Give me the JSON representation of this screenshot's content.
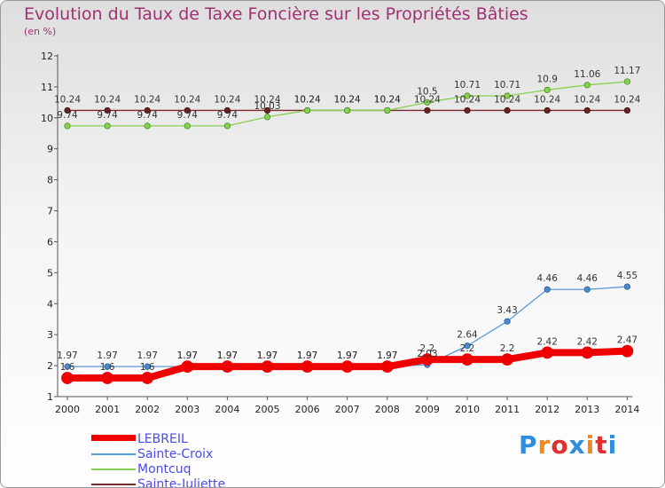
{
  "chart_data": {
    "type": "line",
    "title": "Evolution du Taux de Taxe Foncière sur les Propriétés Bâties",
    "ylabel": "(en %)",
    "xlabel": "",
    "ylim": [
      1,
      12
    ],
    "yticks": [
      1,
      2,
      3,
      4,
      5,
      6,
      7,
      8,
      9,
      10,
      11,
      12
    ],
    "x": [
      "2000",
      "2001",
      "2002",
      "2003",
      "2004",
      "2005",
      "2006",
      "2007",
      "2008",
      "2009",
      "2010",
      "2011",
      "2012",
      "2013",
      "2014"
    ],
    "series": [
      {
        "name": "LEBREIL",
        "color": "#ee0000",
        "values": [
          1.6,
          1.6,
          1.6,
          1.97,
          1.97,
          1.97,
          1.97,
          1.97,
          1.97,
          2.2,
          2.2,
          2.2,
          2.42,
          2.42,
          2.47
        ],
        "labels": [
          "1.6",
          "1.6",
          "1.6",
          "1.97",
          "1.97",
          "1.97",
          "1.97",
          "1.97",
          "1.97",
          "2.2",
          "2.2",
          "2.2",
          "2.42",
          "2.42",
          "2.47"
        ]
      },
      {
        "name": "Sainte-Croix",
        "color": "#5a9ad8",
        "values": [
          1.97,
          1.97,
          1.97,
          1.97,
          1.97,
          1.97,
          1.97,
          1.97,
          1.97,
          2.03,
          2.64,
          3.43,
          4.46,
          4.46,
          4.55
        ],
        "labels": [
          "1.97",
          "1.97",
          "1.97",
          "1.97",
          "1.97",
          "1.97",
          "1.97",
          "1.97",
          "1.97",
          "2.03",
          "2.64",
          "3.43",
          "4.46",
          "4.46",
          "4.55"
        ]
      },
      {
        "name": "Montcuq",
        "color": "#88d050",
        "values": [
          9.74,
          9.74,
          9.74,
          9.74,
          9.74,
          10.03,
          10.24,
          10.24,
          10.24,
          10.5,
          10.71,
          10.71,
          10.9,
          11.06,
          11.17
        ],
        "labels": [
          "9.74",
          "9.74",
          "9.74",
          "9.74",
          "9.74",
          "10.03",
          "10.24",
          "10.24",
          "10.24",
          "10.5",
          "10.71",
          "10.71",
          "10.9",
          "11.06",
          "11.17"
        ]
      },
      {
        "name": "Sainte-Juliette",
        "color": "#7a2a2a",
        "values": [
          10.24,
          10.24,
          10.24,
          10.24,
          10.24,
          10.24,
          10.24,
          10.24,
          10.24,
          10.24,
          10.24,
          10.24,
          10.24,
          10.24,
          10.24
        ],
        "labels": [
          "10.24",
          "10.24",
          "10.24",
          "10.24",
          "10.24",
          "10.24",
          "10.24",
          "10.24",
          "10.24",
          "10.24",
          "10.24",
          "10.24",
          "10.24",
          "10.24",
          "10.24"
        ]
      }
    ],
    "legend_position": "bottom-left",
    "grid": false
  },
  "brand": {
    "letters": [
      "P",
      "r",
      "o",
      "x",
      "i",
      "t",
      "i"
    ],
    "colors": [
      "#2f8ee0",
      "#f08a20",
      "#e03030",
      "#2f8ee0",
      "#f08a20",
      "#e03030",
      "#2f8ee0"
    ]
  }
}
